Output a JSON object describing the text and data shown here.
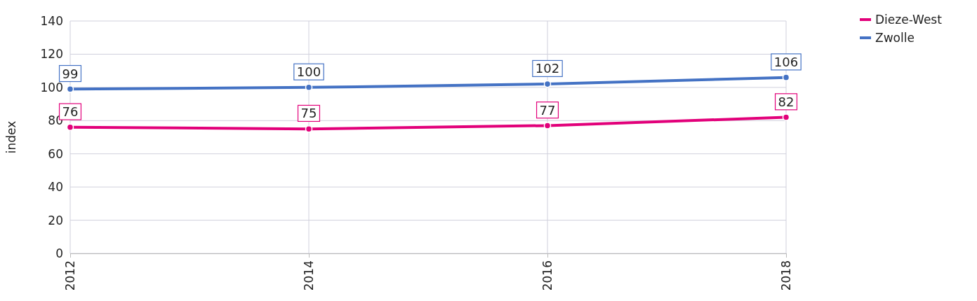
{
  "chart_data": {
    "type": "line",
    "ylabel": "index",
    "x": [
      2012,
      2014,
      2016,
      2018
    ],
    "xlim": [
      2012,
      2018
    ],
    "xticks": [
      2012,
      2014,
      2016,
      2018
    ],
    "ylim": [
      0,
      140
    ],
    "yticks": [
      0,
      20,
      40,
      60,
      80,
      100,
      120,
      140
    ],
    "grid": true,
    "legend": "top right",
    "marker": "circle",
    "line_style": "solid",
    "data_labels": true,
    "series": [
      {
        "name": "Dieze-West",
        "color": "#e2007a",
        "values": [
          76,
          75,
          77,
          82
        ]
      },
      {
        "name": "Zwolle",
        "color": "#4472c4",
        "values": [
          99,
          100,
          102,
          106
        ]
      }
    ]
  }
}
